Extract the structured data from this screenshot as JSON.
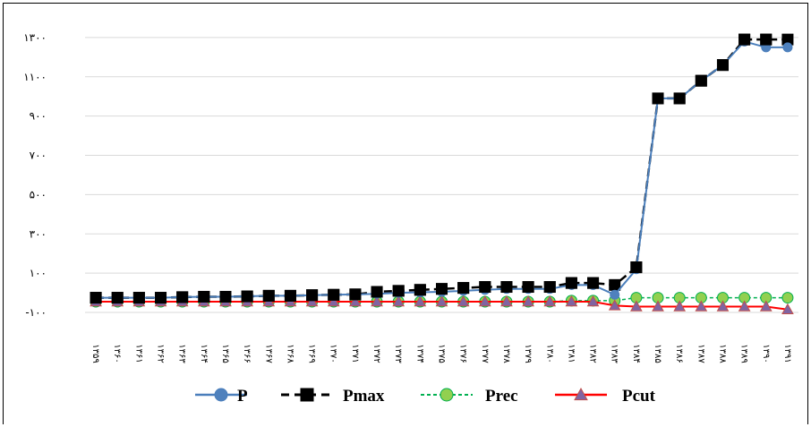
{
  "chart_data": {
    "type": "line",
    "title": "",
    "xlabel": "",
    "ylabel": "",
    "ylim": [
      -150,
      1400
    ],
    "y_ticks": [
      -100,
      100,
      300,
      500,
      700,
      900,
      1100,
      1300
    ],
    "y_tick_labels": [
      "-۱۰۰",
      "۱۰۰",
      "۳۰۰",
      "۵۰۰",
      "۷۰۰",
      "۹۰۰",
      "۱۱۰۰",
      "۱۳۰۰"
    ],
    "categories": [
      "۱۳۵۹",
      "۱۳۶۰",
      "۱۳۶۱",
      "۱۳۶۲",
      "۱۳۶۳",
      "۱۳۶۴",
      "۱۳۶۵",
      "۱۳۶۶",
      "۱۳۶۷",
      "۱۳۶۸",
      "۱۳۶۹",
      "۱۳۷۰",
      "۱۳۷۱",
      "۱۳۷۲",
      "۱۳۷۳",
      "۱۳۷۴",
      "۱۳۷۵",
      "۱۳۷۶",
      "۱۳۷۷",
      "۱۳۷۸",
      "۱۳۷۹",
      "۱۳۸۰",
      "۱۳۸۱",
      "۱۳۸۲",
      "۱۳۸۳",
      "۱۳۸۴",
      "۱۳۸۵",
      "۱۳۸۶",
      "۱۳۸۷",
      "۱۳۸۸",
      "۱۳۸۹",
      "۱۳۹۰",
      "۱۳۹۱"
    ],
    "grid": "horizontal",
    "legend_position": "bottom",
    "series": [
      {
        "name": "P",
        "color": "#4A7EBB",
        "style": "solid",
        "marker": "circle",
        "values": [
          -25,
          -25,
          -25,
          -25,
          -22,
          -20,
          -20,
          -18,
          -15,
          -15,
          -12,
          -10,
          -8,
          -5,
          0,
          3,
          5,
          10,
          15,
          20,
          20,
          20,
          40,
          40,
          -10,
          120,
          990,
          990,
          1080,
          1160,
          1280,
          1250,
          1250
        ]
      },
      {
        "name": "Pmax",
        "color": "#000000",
        "style": "dashed",
        "marker": "square",
        "values": [
          -25,
          -25,
          -25,
          -25,
          -22,
          -20,
          -20,
          -18,
          -15,
          -15,
          -12,
          -10,
          -8,
          5,
          10,
          15,
          20,
          25,
          30,
          30,
          30,
          30,
          50,
          50,
          40,
          130,
          990,
          990,
          1080,
          1160,
          1290,
          1290,
          1290
        ]
      },
      {
        "name": "Prec",
        "color": "#00B050",
        "style": "dashed",
        "marker": "circle",
        "values": [
          -45,
          -45,
          -45,
          -45,
          -45,
          -45,
          -45,
          -45,
          -45,
          -45,
          -45,
          -45,
          -45,
          -45,
          -45,
          -45,
          -45,
          -45,
          -45,
          -45,
          -45,
          -45,
          -40,
          -40,
          -40,
          -25,
          -25,
          -25,
          -25,
          -25,
          -25,
          -25,
          -25
        ]
      },
      {
        "name": "Pcut",
        "color": "#FF0000",
        "style": "solid",
        "marker": "triangle",
        "values": [
          -45,
          -45,
          -45,
          -45,
          -45,
          -45,
          -45,
          -45,
          -45,
          -45,
          -45,
          -45,
          -45,
          -45,
          -45,
          -45,
          -45,
          -45,
          -45,
          -45,
          -45,
          -45,
          -45,
          -45,
          -65,
          -70,
          -70,
          -70,
          -70,
          -70,
          -70,
          -70,
          -85
        ]
      }
    ]
  }
}
